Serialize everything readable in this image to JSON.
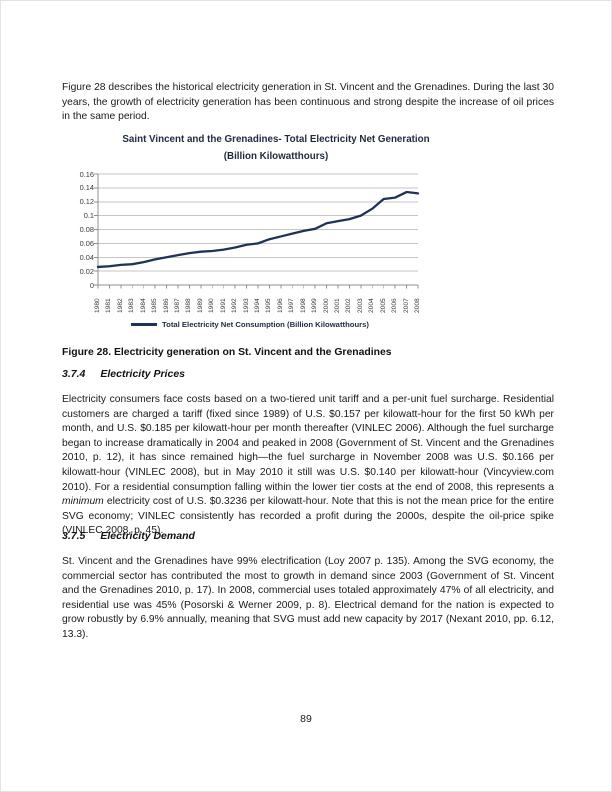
{
  "document": {
    "intro": "Figure 28 describes the historical electricity generation in St. Vincent and the Grenadines. During the last 30 years, the growth of electricity generation has been continuous and strong despite the increase of oil prices in the same period.",
    "caption": "Figure 28. Electricity generation on St. Vincent and the Grenadines",
    "page_number": "89",
    "sections": [
      {
        "number": "3.7.4",
        "title": "Electricity Prices",
        "body_part1": "Electricity consumers face costs based on a two-tiered unit tariff and a per-unit fuel surcharge. Residential customers are charged a tariff (fixed since 1989) of U.S. $0.157 per kilowatt-hour for the first 50 kWh per month, and U.S. $0.185 per kilowatt-hour per month thereafter (VINLEC 2006). Although the fuel surcharge began to increase dramatically in 2004 and peaked in 2008 (Government of St. Vincent and the Grenadines 2010, p. 12), it has since remained high—the fuel surcharge in November 2008 was U.S. $0.166 per kilowatt-hour (VINLEC 2008), but in May 2010 it still was U.S. $0.140 per kilowatt-hour (Vincyview.com 2010). For a residential consumption falling within the lower tier costs at the end of 2008, this represents a ",
        "body_italic": "minimum",
        "body_part2": " electricity cost of U.S. $0.3236 per kilowatt-hour. Note that this is not the mean price for the entire SVG economy; VINLEC consistently has recorded a profit during the 2000s, despite the oil-price spike (VINLEC 2008, p. 45)."
      },
      {
        "number": "3.7.5",
        "title": "Electricity Demand",
        "body_part1": "St. Vincent and the Grenadines have 99% electrification (Loy 2007 p. 135). Among the SVG economy, the commercial sector has contributed the most to growth in demand since 2003 (Government of St. Vincent and the Grenadines 2010, p. 17). In 2008, commercial uses totaled approximately 47% of all electricity, and residential use was 45% (Posorski & Werner 2009, p. 8). Electrical demand for the nation is expected to grow robustly by 6.9% annually, meaning that SVG must add new capacity by 2017 (Nexant 2010, pp. 6.12, 13.3).",
        "body_italic": "",
        "body_part2": ""
      }
    ]
  },
  "chart_data": {
    "type": "line",
    "title": "Saint Vincent and the Grenadines- Total Electricity Net Generation (Billion Kilowatthours)",
    "x": [
      "1980",
      "1981",
      "1982",
      "1983",
      "1984",
      "1985",
      "1986",
      "1987",
      "1988",
      "1989",
      "1990",
      "1991",
      "1992",
      "1993",
      "1994",
      "1995",
      "1996",
      "1997",
      "1998",
      "1999",
      "2000",
      "2001",
      "2002",
      "2003",
      "2004",
      "2005",
      "2006",
      "2007",
      "2008"
    ],
    "series": [
      {
        "name": "Total Electricity Net Consumption (Billion Kilowatthours)",
        "values": [
          0.026,
          0.027,
          0.029,
          0.03,
          0.033,
          0.037,
          0.04,
          0.043,
          0.046,
          0.048,
          0.049,
          0.051,
          0.054,
          0.058,
          0.06,
          0.066,
          0.07,
          0.074,
          0.078,
          0.081,
          0.089,
          0.092,
          0.095,
          0.1,
          0.11,
          0.124,
          0.126,
          0.134,
          0.132
        ]
      }
    ],
    "xlabel": "",
    "ylabel": "",
    "ylim": [
      0,
      0.16
    ],
    "yticks": [
      "0",
      "0.02",
      "0.04",
      "0.06",
      "0.08",
      "0.1",
      "0.12",
      "0.14",
      "0.16"
    ],
    "grid": true,
    "legend_position": "bottom",
    "colors": {
      "line": "#1f3357",
      "grid": "#c6c6c6",
      "axis": "#8f8f8f",
      "chart_text": "#1f2940"
    }
  }
}
